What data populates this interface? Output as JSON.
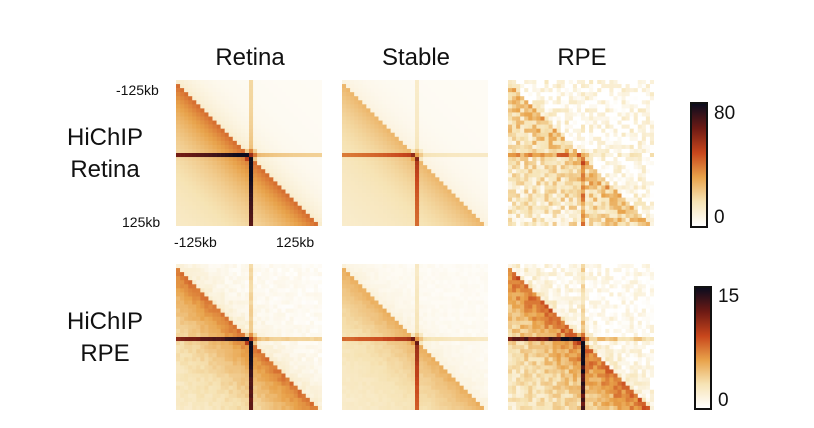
{
  "chart_data": {
    "type": "heatmap",
    "columns": [
      "Retina",
      "Stable",
      "RPE"
    ],
    "rows": [
      {
        "title_line1": "HiChIP",
        "title_line2": "Retina",
        "colorbar": {
          "min": 0,
          "max": 80,
          "min_label": "0",
          "max_label": "80"
        },
        "panels": [
          {
            "column": "Retina",
            "intensity": 1.0,
            "speckle": 0.0
          },
          {
            "column": "Stable",
            "intensity": 0.55,
            "speckle": 0.0
          },
          {
            "column": "RPE",
            "intensity": 0.35,
            "speckle": 0.55
          }
        ]
      },
      {
        "title_line1": "HiChIP",
        "title_line2": "RPE",
        "colorbar": {
          "min": 0,
          "max": 15,
          "min_label": "0",
          "max_label": "15"
        },
        "panels": [
          {
            "column": "Retina",
            "intensity": 0.95,
            "speckle": 0.1
          },
          {
            "column": "Stable",
            "intensity": 0.6,
            "speckle": 0.05
          },
          {
            "column": "RPE",
            "intensity": 0.95,
            "speckle": 0.35
          }
        ]
      }
    ],
    "y_ticks": [
      "-125kb",
      "125kb"
    ],
    "x_ticks": [
      "-125kb",
      "125kb"
    ],
    "colormap": [
      "#ffffff",
      "#f6e3b4",
      "#e8a24a",
      "#c8461c",
      "#6e1a14",
      "#0c0c1e"
    ]
  }
}
